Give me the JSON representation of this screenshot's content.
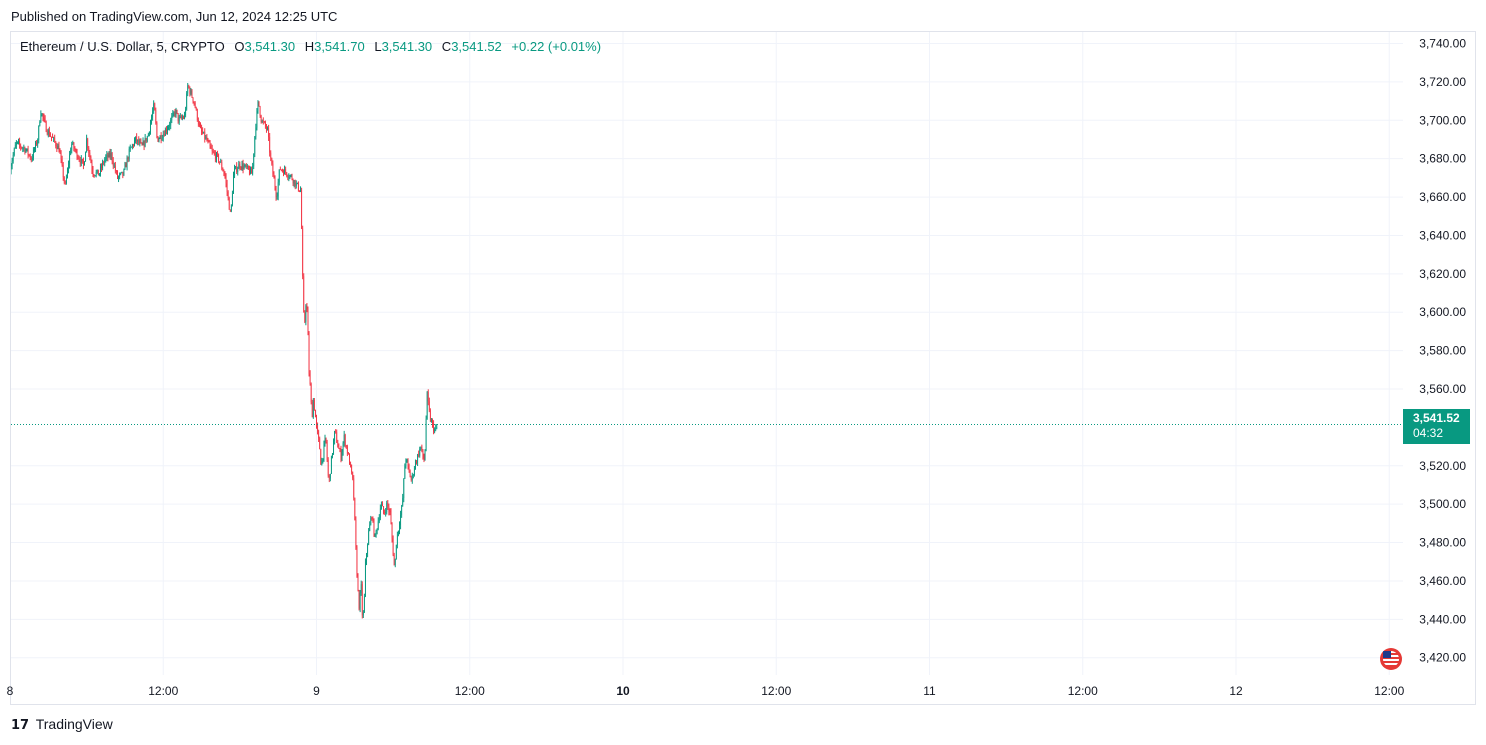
{
  "header": {
    "published": "Published on TradingView.com, Jun 12, 2024 12:25 UTC"
  },
  "legend": {
    "symbol": "Ethereum / U.S. Dollar, 5, CRYPTO",
    "o_label": "O",
    "o_value": "3,541.30",
    "h_label": "H",
    "h_value": "3,541.70",
    "l_label": "L",
    "l_value": "3,541.30",
    "c_label": "C",
    "c_value": "3,541.52",
    "change": "+0.22 (+0.01%)"
  },
  "price_tag": {
    "price": "3,541.52",
    "countdown": "04:32"
  },
  "footer": {
    "brand": "TradingView",
    "logo_glyph": "17"
  },
  "colors": {
    "up": "#089981",
    "down": "#f23645",
    "grid": "#f0f3fa",
    "axis_text": "#131722"
  },
  "icons": {
    "flag": "us-flag-icon"
  },
  "chart_data": {
    "type": "candlestick",
    "symbol": "ETH/USD",
    "interval": "5m",
    "y_ticks": [
      "3,740.00",
      "3,720.00",
      "3,700.00",
      "3,680.00",
      "3,660.00",
      "3,640.00",
      "3,620.00",
      "3,600.00",
      "3,580.00",
      "3,560.00",
      "3,520.00",
      "3,500.00",
      "3,480.00",
      "3,460.00",
      "3,440.00",
      "3,420.00"
    ],
    "y_tick_values": [
      3740,
      3720,
      3700,
      3680,
      3660,
      3640,
      3620,
      3600,
      3580,
      3560,
      3520,
      3500,
      3480,
      3460,
      3440,
      3420
    ],
    "ylim": [
      3411,
      3746
    ],
    "x_ticks": [
      {
        "label": "8",
        "bold": false
      },
      {
        "label": "12:00",
        "bold": false
      },
      {
        "label": "9",
        "bold": false
      },
      {
        "label": "12:00",
        "bold": false
      },
      {
        "label": "10",
        "bold": true
      },
      {
        "label": "12:00",
        "bold": false
      },
      {
        "label": "11",
        "bold": false
      },
      {
        "label": "12:00",
        "bold": false
      },
      {
        "label": "12",
        "bold": false
      },
      {
        "label": "12:00",
        "bold": false
      }
    ],
    "last_price": 3541.52,
    "price_path": [
      [
        0.0,
        3675
      ],
      [
        0.02,
        3688
      ],
      [
        0.05,
        3685
      ],
      [
        0.07,
        3680
      ],
      [
        0.09,
        3690
      ],
      [
        0.1,
        3705
      ],
      [
        0.12,
        3695
      ],
      [
        0.14,
        3690
      ],
      [
        0.16,
        3685
      ],
      [
        0.18,
        3665
      ],
      [
        0.2,
        3688
      ],
      [
        0.22,
        3682
      ],
      [
        0.24,
        3676
      ],
      [
        0.25,
        3690
      ],
      [
        0.27,
        3673
      ],
      [
        0.29,
        3672
      ],
      [
        0.31,
        3680
      ],
      [
        0.33,
        3682
      ],
      [
        0.35,
        3670
      ],
      [
        0.37,
        3672
      ],
      [
        0.39,
        3684
      ],
      [
        0.41,
        3690
      ],
      [
        0.43,
        3686
      ],
      [
        0.45,
        3692
      ],
      [
        0.47,
        3708
      ],
      [
        0.48,
        3690
      ],
      [
        0.5,
        3693
      ],
      [
        0.52,
        3698
      ],
      [
        0.54,
        3705
      ],
      [
        0.55,
        3700
      ],
      [
        0.57,
        3702
      ],
      [
        0.58,
        3718
      ],
      [
        0.6,
        3710
      ],
      [
        0.62,
        3695
      ],
      [
        0.64,
        3690
      ],
      [
        0.66,
        3683
      ],
      [
        0.68,
        3680
      ],
      [
        0.7,
        3672
      ],
      [
        0.72,
        3650
      ],
      [
        0.73,
        3673
      ],
      [
        0.75,
        3677
      ],
      [
        0.77,
        3675
      ],
      [
        0.79,
        3672
      ],
      [
        0.8,
        3695
      ],
      [
        0.81,
        3710
      ],
      [
        0.82,
        3700
      ],
      [
        0.84,
        3695
      ],
      [
        0.85,
        3680
      ],
      [
        0.87,
        3660
      ],
      [
        0.88,
        3675
      ],
      [
        0.9,
        3673
      ],
      [
        0.92,
        3670
      ],
      [
        0.94,
        3665
      ],
      [
        0.95,
        3663
      ],
      [
        0.952,
        3635
      ],
      [
        0.956,
        3610
      ],
      [
        0.96,
        3590
      ],
      [
        0.965,
        3605
      ],
      [
        0.97,
        3600
      ],
      [
        0.975,
        3570
      ],
      [
        0.98,
        3560
      ],
      [
        0.985,
        3545
      ],
      [
        0.99,
        3555
      ],
      [
        1.0,
        3540
      ],
      [
        1.01,
        3530
      ],
      [
        1.015,
        3520
      ],
      [
        1.02,
        3525
      ],
      [
        1.03,
        3535
      ],
      [
        1.04,
        3510
      ],
      [
        1.05,
        3525
      ],
      [
        1.06,
        3538
      ],
      [
        1.07,
        3530
      ],
      [
        1.08,
        3525
      ],
      [
        1.09,
        3535
      ],
      [
        1.1,
        3528
      ],
      [
        1.11,
        3520
      ],
      [
        1.12,
        3510
      ],
      [
        1.125,
        3490
      ],
      [
        1.13,
        3470
      ],
      [
        1.135,
        3455
      ],
      [
        1.14,
        3445
      ],
      [
        1.145,
        3460
      ],
      [
        1.15,
        3440
      ],
      [
        1.155,
        3445
      ],
      [
        1.16,
        3470
      ],
      [
        1.17,
        3485
      ],
      [
        1.18,
        3495
      ],
      [
        1.19,
        3482
      ],
      [
        1.2,
        3490
      ],
      [
        1.21,
        3500
      ],
      [
        1.22,
        3495
      ],
      [
        1.23,
        3500
      ],
      [
        1.24,
        3495
      ],
      [
        1.25,
        3475
      ],
      [
        1.255,
        3465
      ],
      [
        1.26,
        3480
      ],
      [
        1.27,
        3490
      ],
      [
        1.28,
        3500
      ],
      [
        1.29,
        3525
      ],
      [
        1.3,
        3518
      ],
      [
        1.31,
        3512
      ],
      [
        1.32,
        3520
      ],
      [
        1.33,
        3525
      ],
      [
        1.34,
        3530
      ],
      [
        1.35,
        3522
      ],
      [
        1.355,
        3530
      ],
      [
        1.36,
        3558
      ],
      [
        1.37,
        3545
      ],
      [
        1.38,
        3540
      ],
      [
        1.39,
        3538
      ],
      [
        1.395,
        3541.52
      ]
    ]
  }
}
